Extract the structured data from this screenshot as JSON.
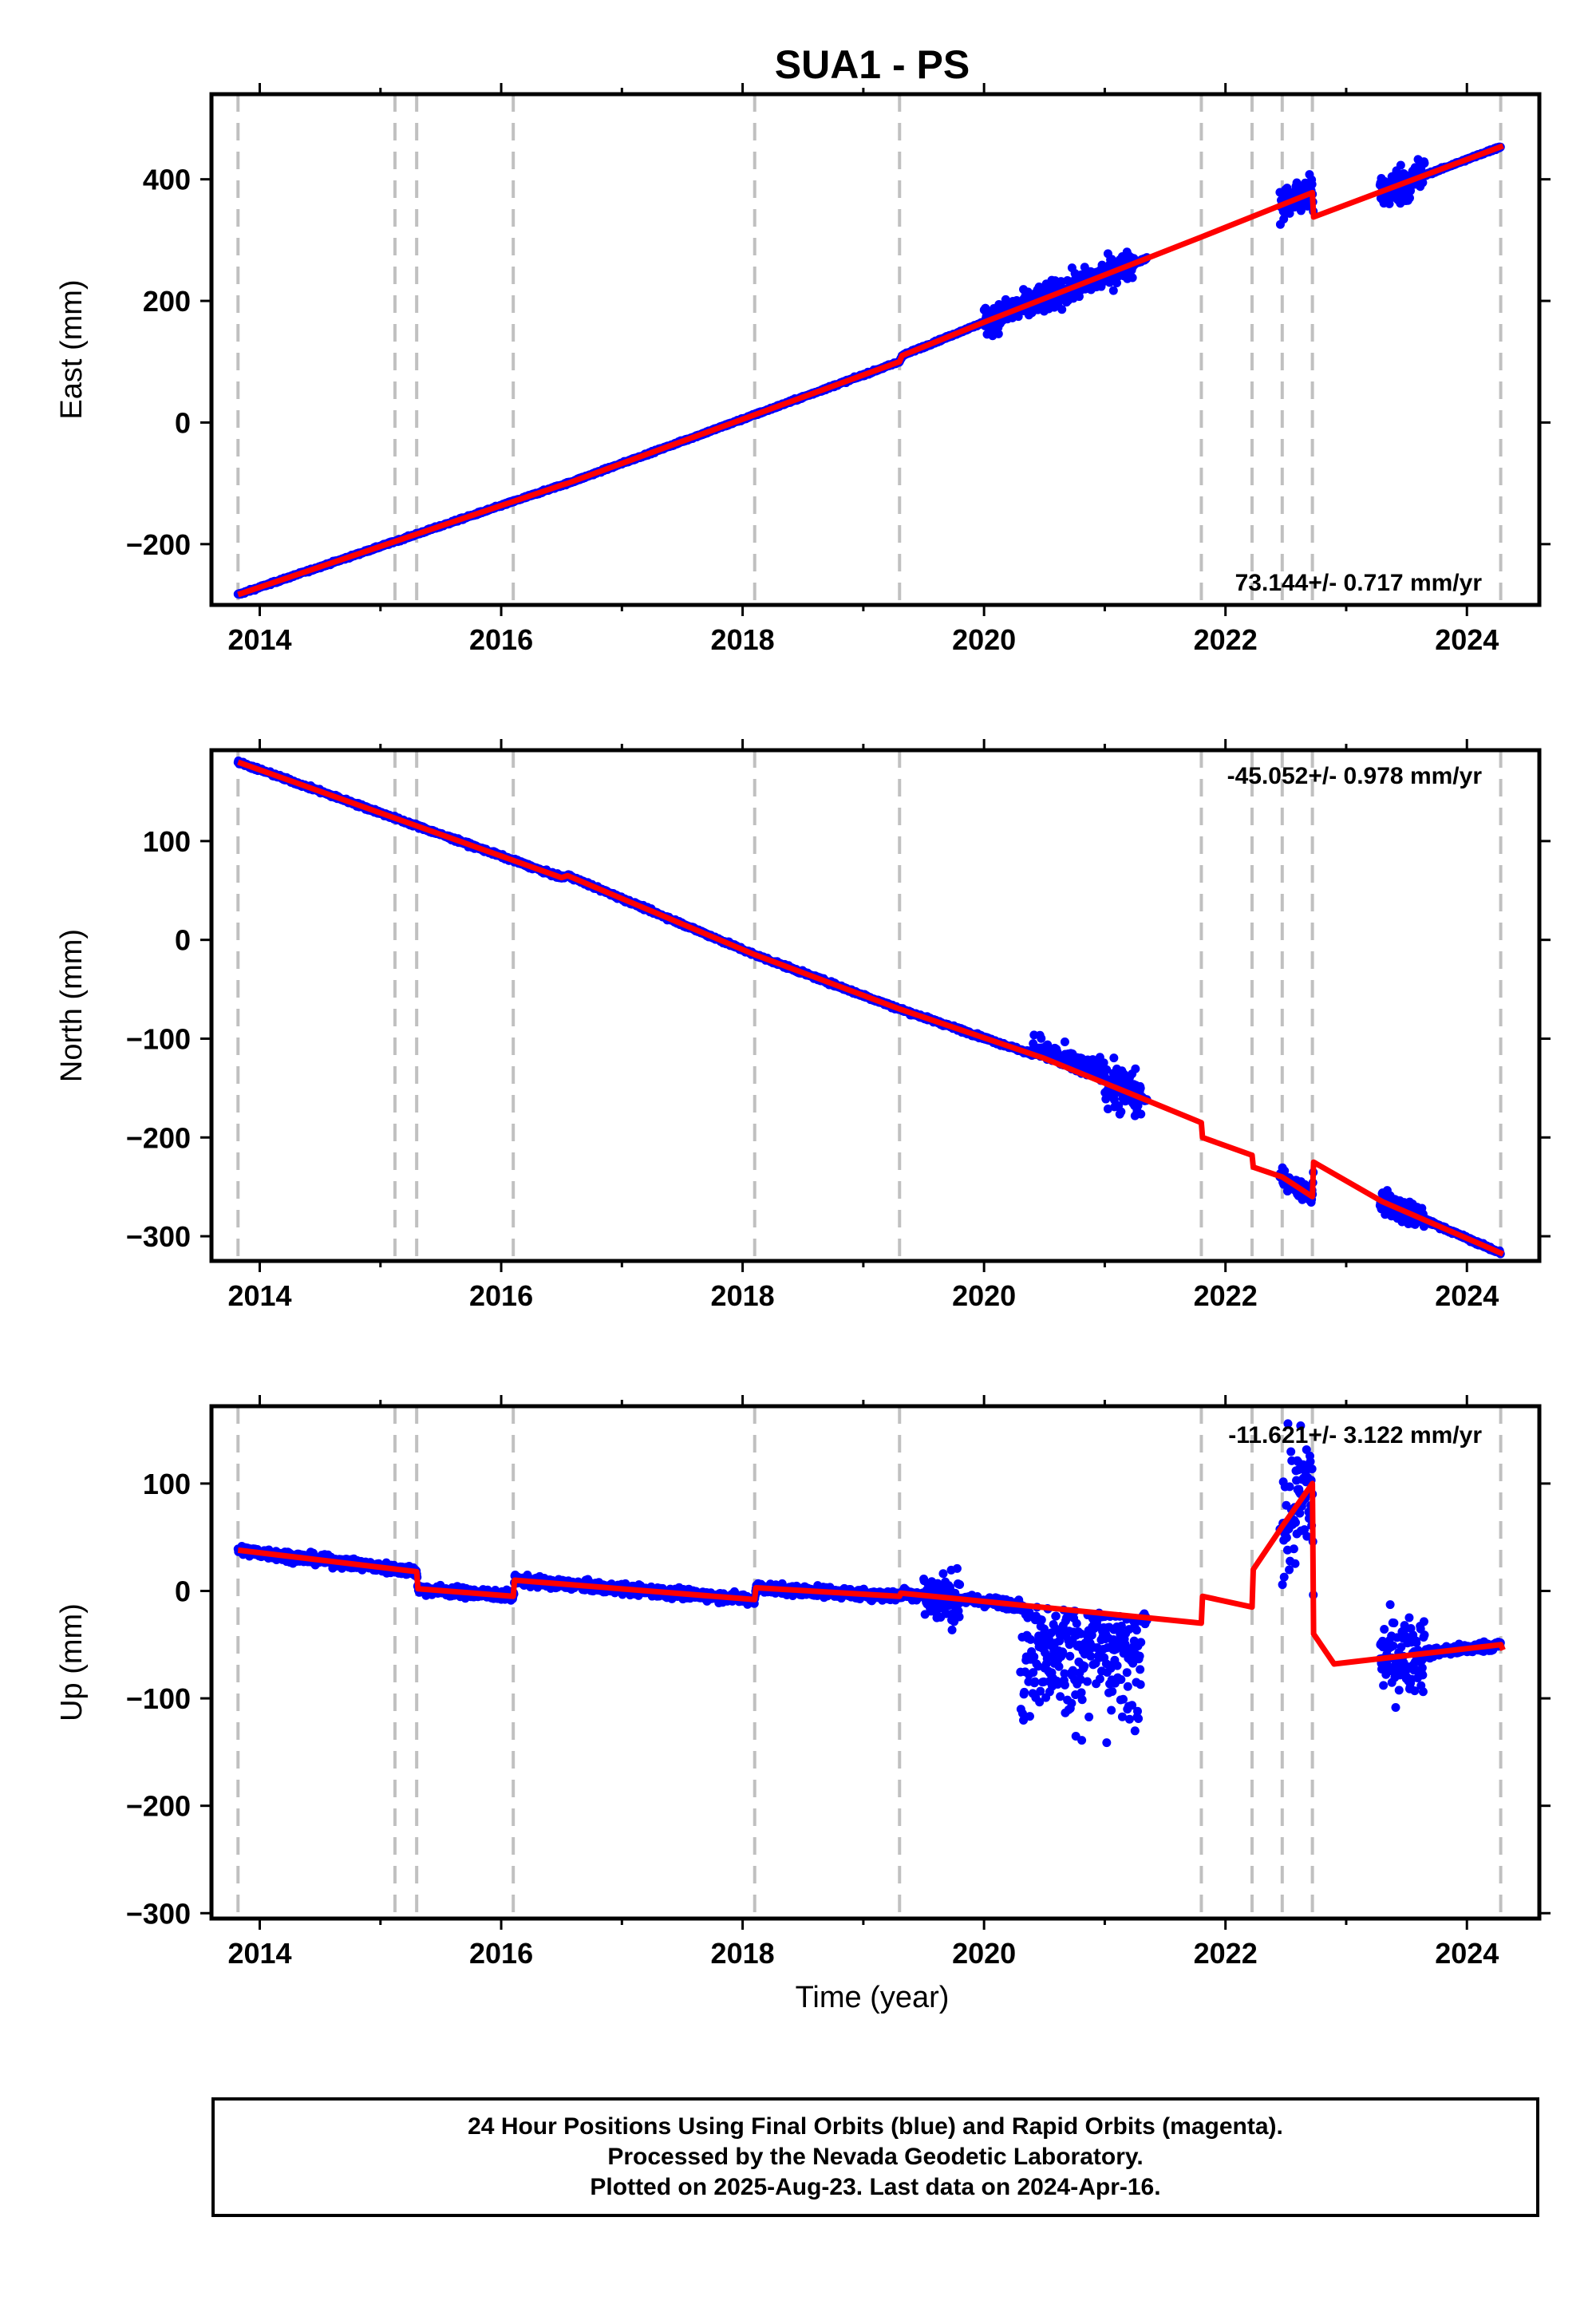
{
  "title": "SUA1 - PS",
  "xlabel": "Time (year)",
  "footer": {
    "line1": "24 Hour Positions Using Final Orbits (blue) and Rapid Orbits (magenta).",
    "line2": "Processed by the Nevada Geodetic Laboratory.",
    "line3": "Plotted on 2025-Aug-23. Last data on 2024-Apr-16."
  },
  "colors": {
    "data": "#0000ff",
    "model": "#ff0000",
    "breaks": "#c0c0c0"
  },
  "chart_data": [
    {
      "type": "scatter",
      "component": "East",
      "ylabel": "East (mm)",
      "rate_label": "73.144+/- 0.717 mm/yr",
      "xlim": [
        2013.6,
        2024.6
      ],
      "ylim": [
        -300,
        540
      ],
      "xticks": [
        "2014",
        "2016",
        "2018",
        "2020",
        "2022",
        "2024"
      ],
      "yticks": [
        "−200",
        "0",
        "200",
        "400"
      ],
      "yticks_values": [
        -200,
        0,
        200,
        400
      ],
      "breaks": [
        2013.82,
        2015.12,
        2015.3,
        2016.1,
        2018.1,
        2019.3,
        2021.8,
        2022.22,
        2022.47,
        2022.72,
        2024.28
      ],
      "model": [
        [
          2013.82,
          -283
        ],
        [
          2016.5,
          -103
        ],
        [
          2016.55,
          -100
        ],
        [
          2019.3,
          100
        ],
        [
          2019.32,
          110
        ],
        [
          2020,
          165
        ],
        [
          2021.8,
          305
        ],
        [
          2022.72,
          378
        ],
        [
          2022.73,
          338
        ],
        [
          2024.3,
          455
        ]
      ],
      "scatter_clusters": [
        {
          "range": [
            2020.0,
            2021.25
          ],
          "spread": 40
        },
        {
          "range": [
            2022.45,
            2022.72
          ],
          "spread": 50
        },
        {
          "range": [
            2023.28,
            2023.65
          ],
          "spread": 55
        }
      ]
    },
    {
      "type": "scatter",
      "component": "North",
      "ylabel": "North (mm)",
      "rate_label": "-45.052+/- 0.978 mm/yr",
      "xlim": [
        2013.6,
        2024.6
      ],
      "ylim": [
        -325,
        192
      ],
      "xticks": [
        "2014",
        "2016",
        "2018",
        "2020",
        "2022",
        "2024"
      ],
      "yticks": [
        "−300",
        "−200",
        "−100",
        "0",
        "100"
      ],
      "yticks_values": [
        -300,
        -200,
        -100,
        0,
        100
      ],
      "breaks": [
        2013.82,
        2015.12,
        2015.3,
        2016.1,
        2018.1,
        2019.3,
        2021.8,
        2022.22,
        2022.47,
        2022.72,
        2024.28
      ],
      "model": [
        [
          2013.82,
          180
        ],
        [
          2016.5,
          63
        ],
        [
          2016.55,
          65
        ],
        [
          2018.1,
          -15
        ],
        [
          2019.3,
          -70
        ],
        [
          2020.5,
          -120
        ],
        [
          2021.8,
          -185
        ],
        [
          2021.81,
          -200
        ],
        [
          2022.22,
          -218
        ],
        [
          2022.23,
          -230
        ],
        [
          2022.47,
          -240
        ],
        [
          2022.72,
          -260
        ],
        [
          2022.73,
          -225
        ],
        [
          2023.3,
          -265
        ],
        [
          2024.3,
          -318
        ]
      ],
      "scatter_clusters": [
        {
          "range": [
            2020.4,
            2021.3
          ],
          "spread": 40
        },
        {
          "range": [
            2022.45,
            2022.72
          ],
          "spread": 15
        },
        {
          "range": [
            2023.28,
            2023.65
          ],
          "spread": 20
        }
      ]
    },
    {
      "type": "scatter",
      "component": "Up",
      "ylabel": "Up (mm)",
      "rate_label": "-11.621+/- 3.122 mm/yr",
      "xlim": [
        2013.6,
        2024.6
      ],
      "ylim": [
        -305,
        172
      ],
      "xticks": [
        "2014",
        "2016",
        "2018",
        "2020",
        "2022",
        "2024"
      ],
      "yticks": [
        "−300",
        "−200",
        "−100",
        "0",
        "100"
      ],
      "yticks_values": [
        -300,
        -200,
        -100,
        0,
        100
      ],
      "breaks": [
        2013.82,
        2015.12,
        2015.3,
        2016.1,
        2018.1,
        2019.3,
        2021.8,
        2022.22,
        2022.47,
        2022.72,
        2024.28
      ],
      "model": [
        [
          2013.82,
          38
        ],
        [
          2015.3,
          18
        ],
        [
          2015.31,
          2
        ],
        [
          2016.1,
          -5
        ],
        [
          2016.11,
          10
        ],
        [
          2018.1,
          -8
        ],
        [
          2018.11,
          3
        ],
        [
          2019.3,
          -5
        ],
        [
          2019.31,
          -2
        ],
        [
          2021.8,
          -30
        ],
        [
          2021.81,
          -5
        ],
        [
          2022.22,
          -15
        ],
        [
          2022.23,
          20
        ],
        [
          2022.47,
          60
        ],
        [
          2022.72,
          100
        ],
        [
          2022.73,
          -40
        ],
        [
          2022.9,
          -68
        ],
        [
          2024.28,
          -50
        ],
        [
          2024.3,
          -55
        ]
      ],
      "scatter_clusters": [
        {
          "range": [
            2019.5,
            2019.8
          ],
          "spread": 40
        },
        {
          "range": [
            2020.3,
            2021.3
          ],
          "spread": 120
        },
        {
          "range": [
            2022.47,
            2022.72
          ],
          "spread": 90
        },
        {
          "range": [
            2023.28,
            2023.65
          ],
          "spread": 60
        }
      ]
    }
  ]
}
